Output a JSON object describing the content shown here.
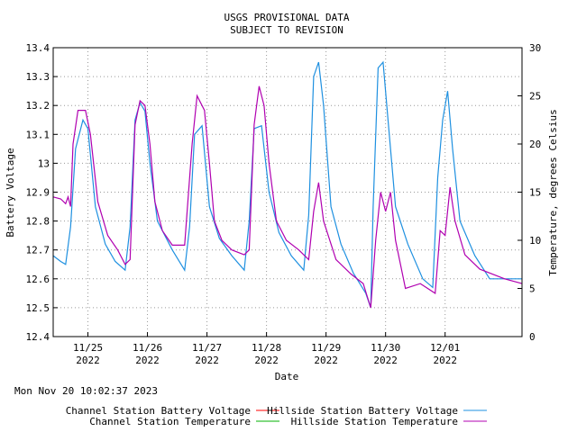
{
  "header": {
    "line1": "USGS PROVISIONAL DATA",
    "line2": "SUBJECT TO REVISION"
  },
  "timestamp": "Mon Nov 20 10:02:37 2023",
  "chart_data": {
    "type": "line",
    "xlabel": "Date",
    "ylabel_left": "Battery Voltage",
    "ylabel_right": "Temperature, degrees Celsius",
    "x_range": [
      "2022-11-24T10:00",
      "2022-12-02T07:00"
    ],
    "ylim_left": [
      12.4,
      13.4
    ],
    "ylim_right": [
      0,
      30
    ],
    "y_ticks_left": [
      "12.4",
      "12.5",
      "12.6",
      "12.7",
      "12.8",
      "12.9",
      "13",
      "13.1",
      "13.2",
      "13.3",
      "13.4"
    ],
    "y_ticks_right": [
      "0",
      "5",
      "10",
      "15",
      "20",
      "25",
      "30"
    ],
    "x_ticks": [
      {
        "date": "2022-11-25",
        "label": "11/25",
        "year": "2022"
      },
      {
        "date": "2022-11-26",
        "label": "11/26",
        "year": "2022"
      },
      {
        "date": "2022-11-27",
        "label": "11/27",
        "year": "2022"
      },
      {
        "date": "2022-11-28",
        "label": "11/28",
        "year": "2022"
      },
      {
        "date": "2022-11-29",
        "label": "11/29",
        "year": "2022"
      },
      {
        "date": "2022-11-30",
        "label": "11/30",
        "year": "2022"
      },
      {
        "date": "2022-12-01",
        "label": "12/01",
        "year": "2022"
      }
    ],
    "grid": true,
    "legend": [
      {
        "name": "Channel Station Battery Voltage",
        "color": "#ff0000"
      },
      {
        "name": "Hillside Station Battery Voltage",
        "color": "#1e90e0"
      },
      {
        "name": "Channel Station Temperature",
        "color": "#00b000"
      },
      {
        "name": "Hillside Station Temperature",
        "color": "#b000b0"
      }
    ],
    "series": [
      {
        "name": "Hillside Station Battery Voltage",
        "axis": "left",
        "color": "#1e90e0",
        "points": [
          [
            "2022-11-24T10:00",
            12.68
          ],
          [
            "2022-11-24T13:00",
            12.66
          ],
          [
            "2022-11-24T15:00",
            12.65
          ],
          [
            "2022-11-24T17:00",
            12.78
          ],
          [
            "2022-11-24T19:00",
            13.05
          ],
          [
            "2022-11-24T22:00",
            13.15
          ],
          [
            "2022-11-25T00:00",
            13.12
          ],
          [
            "2022-11-25T03:00",
            12.85
          ],
          [
            "2022-11-25T07:00",
            12.72
          ],
          [
            "2022-11-25T11:00",
            12.66
          ],
          [
            "2022-11-25T15:00",
            12.63
          ],
          [
            "2022-11-25T17:00",
            12.78
          ],
          [
            "2022-11-25T19:00",
            13.15
          ],
          [
            "2022-11-25T21:00",
            13.21
          ],
          [
            "2022-11-25T23:00",
            13.18
          ],
          [
            "2022-11-26T01:00",
            13.0
          ],
          [
            "2022-11-26T04:00",
            12.8
          ],
          [
            "2022-11-26T10:00",
            12.7
          ],
          [
            "2022-11-26T15:00",
            12.63
          ],
          [
            "2022-11-26T17:00",
            12.78
          ],
          [
            "2022-11-26T19:00",
            13.1
          ],
          [
            "2022-11-26T22:00",
            13.13
          ],
          [
            "2022-11-27T01:00",
            12.85
          ],
          [
            "2022-11-27T05:00",
            12.74
          ],
          [
            "2022-11-27T10:00",
            12.68
          ],
          [
            "2022-11-27T15:00",
            12.63
          ],
          [
            "2022-11-27T17:00",
            12.8
          ],
          [
            "2022-11-27T19:00",
            13.12
          ],
          [
            "2022-11-27T22:00",
            13.13
          ],
          [
            "2022-11-28T01:00",
            12.9
          ],
          [
            "2022-11-28T05:00",
            12.76
          ],
          [
            "2022-11-28T10:00",
            12.68
          ],
          [
            "2022-11-28T15:00",
            12.63
          ],
          [
            "2022-11-28T17:00",
            12.82
          ],
          [
            "2022-11-28T19:00",
            13.3
          ],
          [
            "2022-11-28T21:00",
            13.35
          ],
          [
            "2022-11-28T23:00",
            13.2
          ],
          [
            "2022-11-29T02:00",
            12.85
          ],
          [
            "2022-11-29T06:00",
            12.72
          ],
          [
            "2022-11-29T11:00",
            12.62
          ],
          [
            "2022-11-29T16:00",
            12.55
          ],
          [
            "2022-11-29T18:00",
            12.5
          ],
          [
            "2022-11-29T19:00",
            12.85
          ],
          [
            "2022-11-29T21:00",
            13.33
          ],
          [
            "2022-11-29T23:00",
            13.35
          ],
          [
            "2022-11-30T01:00",
            13.15
          ],
          [
            "2022-11-30T04:00",
            12.85
          ],
          [
            "2022-11-30T09:00",
            12.72
          ],
          [
            "2022-11-30T15:00",
            12.6
          ],
          [
            "2022-11-30T19:00",
            12.57
          ],
          [
            "2022-11-30T21:00",
            12.95
          ],
          [
            "2022-11-30T23:00",
            13.15
          ],
          [
            "2022-12-01T01:00",
            13.25
          ],
          [
            "2022-12-01T03:00",
            13.05
          ],
          [
            "2022-12-01T06:00",
            12.8
          ],
          [
            "2022-12-01T12:00",
            12.68
          ],
          [
            "2022-12-01T18:00",
            12.6
          ],
          [
            "2022-12-02T00:00",
            12.6
          ],
          [
            "2022-12-02T07:00",
            12.6
          ]
        ]
      },
      {
        "name": "Hillside Station Temperature",
        "axis": "right",
        "color": "#b000b0",
        "points": [
          [
            "2022-11-24T10:00",
            14.5
          ],
          [
            "2022-11-24T13:00",
            14.3
          ],
          [
            "2022-11-24T15:00",
            13.8
          ],
          [
            "2022-11-24T16:00",
            14.5
          ],
          [
            "2022-11-24T17:00",
            13.5
          ],
          [
            "2022-11-24T18:00",
            20.0
          ],
          [
            "2022-11-24T20:00",
            23.5
          ],
          [
            "2022-11-24T23:00",
            23.5
          ],
          [
            "2022-11-25T01:00",
            21.0
          ],
          [
            "2022-11-25T04:00",
            14.0
          ],
          [
            "2022-11-25T08:00",
            10.5
          ],
          [
            "2022-11-25T12:00",
            9.0
          ],
          [
            "2022-11-25T15:00",
            7.5
          ],
          [
            "2022-11-25T17:00",
            8.0
          ],
          [
            "2022-11-25T19:00",
            22.0
          ],
          [
            "2022-11-25T21:00",
            24.5
          ],
          [
            "2022-11-25T23:00",
            24.0
          ],
          [
            "2022-11-26T01:00",
            20.0
          ],
          [
            "2022-11-26T03:00",
            14.0
          ],
          [
            "2022-11-26T06:00",
            11.0
          ],
          [
            "2022-11-26T10:00",
            9.5
          ],
          [
            "2022-11-26T15:00",
            9.5
          ],
          [
            "2022-11-26T18:00",
            20.0
          ],
          [
            "2022-11-26T20:00",
            25.0
          ],
          [
            "2022-11-26T23:00",
            23.5
          ],
          [
            "2022-11-27T01:00",
            18.0
          ],
          [
            "2022-11-27T03:00",
            12.0
          ],
          [
            "2022-11-27T06:00",
            10.0
          ],
          [
            "2022-11-27T10:00",
            9.0
          ],
          [
            "2022-11-27T15:00",
            8.5
          ],
          [
            "2022-11-27T17:00",
            9.0
          ],
          [
            "2022-11-27T19:00",
            22.0
          ],
          [
            "2022-11-27T21:00",
            26.0
          ],
          [
            "2022-11-27T23:00",
            24.0
          ],
          [
            "2022-11-28T01:00",
            18.0
          ],
          [
            "2022-11-28T04:00",
            12.0
          ],
          [
            "2022-11-28T08:00",
            10.0
          ],
          [
            "2022-11-28T13:00",
            9.0
          ],
          [
            "2022-11-28T17:00",
            8.0
          ],
          [
            "2022-11-28T19:00",
            13.0
          ],
          [
            "2022-11-28T21:00",
            16.0
          ],
          [
            "2022-11-28T23:00",
            12.0
          ],
          [
            "2022-11-29T04:00",
            8.0
          ],
          [
            "2022-11-29T10:00",
            6.5
          ],
          [
            "2022-11-29T15:00",
            5.5
          ],
          [
            "2022-11-29T18:00",
            3.0
          ],
          [
            "2022-11-29T20:00",
            10.0
          ],
          [
            "2022-11-29T22:00",
            15.0
          ],
          [
            "2022-11-30T00:00",
            13.0
          ],
          [
            "2022-11-30T02:00",
            15.0
          ],
          [
            "2022-11-30T04:00",
            10.0
          ],
          [
            "2022-11-30T08:00",
            5.0
          ],
          [
            "2022-11-30T14:00",
            5.5
          ],
          [
            "2022-11-30T20:00",
            4.5
          ],
          [
            "2022-11-30T22:00",
            11.0
          ],
          [
            "2022-12-01T00:00",
            10.5
          ],
          [
            "2022-12-01T02:00",
            15.5
          ],
          [
            "2022-12-01T04:00",
            12.0
          ],
          [
            "2022-12-01T08:00",
            8.5
          ],
          [
            "2022-12-01T14:00",
            7.0
          ],
          [
            "2022-12-02T00:00",
            6.0
          ],
          [
            "2022-12-02T07:00",
            5.5
          ]
        ]
      }
    ]
  }
}
